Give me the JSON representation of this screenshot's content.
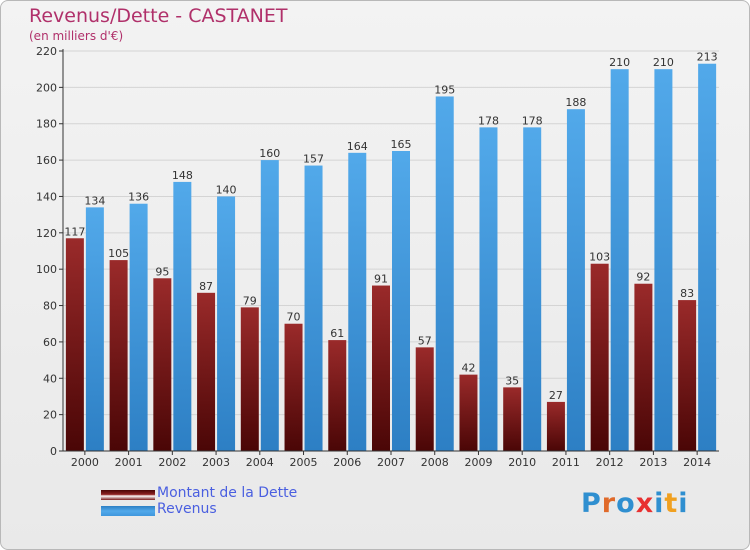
{
  "title": "Revenus/Dette - CASTANET",
  "subtitle": "(en milliers d'€)",
  "logo": {
    "text": "Proxiti",
    "letter_colors": [
      "#2f8fd0",
      "#e06a2a",
      "#2f8fd0",
      "#e83030",
      "#2f8fd0",
      "#f0a020",
      "#2f8fd0"
    ]
  },
  "chart_data": {
    "type": "bar",
    "categories": [
      "2000",
      "2001",
      "2002",
      "2003",
      "2004",
      "2005",
      "2006",
      "2007",
      "2008",
      "2009",
      "2010",
      "2011",
      "2012",
      "2013",
      "2014"
    ],
    "series": [
      {
        "name": "Montant de la Dette",
        "color": "#7b1c1c",
        "values": [
          117,
          105,
          95,
          87,
          79,
          70,
          61,
          91,
          57,
          42,
          35,
          27,
          103,
          92,
          83
        ]
      },
      {
        "name": "Revenus",
        "color": "#3f97dd",
        "values": [
          134,
          136,
          148,
          140,
          160,
          157,
          164,
          165,
          195,
          178,
          178,
          188,
          210,
          210,
          213
        ]
      }
    ],
    "ylim": [
      0,
      220
    ],
    "yticks": [
      0,
      20,
      40,
      60,
      80,
      100,
      120,
      140,
      160,
      180,
      200,
      220
    ],
    "grid": true,
    "legend": "bottom-left"
  }
}
